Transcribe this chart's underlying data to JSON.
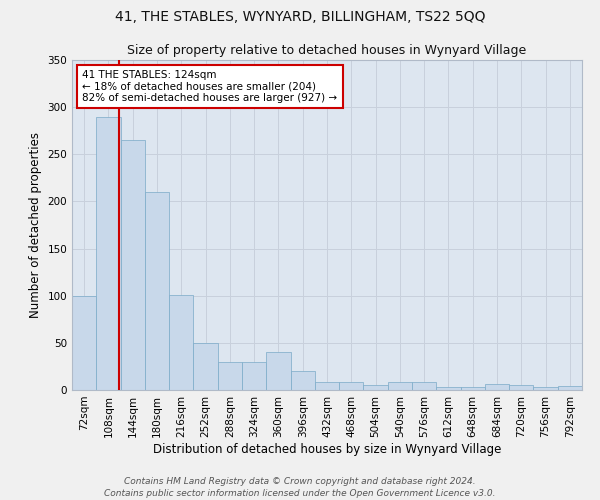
{
  "title": "41, THE STABLES, WYNYARD, BILLINGHAM, TS22 5QQ",
  "subtitle": "Size of property relative to detached houses in Wynyard Village",
  "xlabel": "Distribution of detached houses by size in Wynyard Village",
  "ylabel": "Number of detached properties",
  "bar_color": "#c8d8ea",
  "bar_edge_color": "#7aaac8",
  "grid_color": "#c8d0dc",
  "bg_color": "#dde6f0",
  "fig_color": "#f0f0f0",
  "categories": [
    "72sqm",
    "108sqm",
    "144sqm",
    "180sqm",
    "216sqm",
    "252sqm",
    "288sqm",
    "324sqm",
    "360sqm",
    "396sqm",
    "432sqm",
    "468sqm",
    "504sqm",
    "540sqm",
    "576sqm",
    "612sqm",
    "648sqm",
    "684sqm",
    "720sqm",
    "756sqm",
    "792sqm"
  ],
  "values": [
    100,
    290,
    265,
    210,
    101,
    50,
    30,
    30,
    40,
    20,
    8,
    8,
    5,
    8,
    8,
    3,
    3,
    6,
    5,
    3,
    4
  ],
  "marker_color": "#cc0000",
  "annotation_text": "41 THE STABLES: 124sqm\n← 18% of detached houses are smaller (204)\n82% of semi-detached houses are larger (927) →",
  "annotation_box_color": "#ffffff",
  "annotation_box_edge": "#cc0000",
  "ylim": [
    0,
    350
  ],
  "yticks": [
    0,
    50,
    100,
    150,
    200,
    250,
    300,
    350
  ],
  "footer": "Contains HM Land Registry data © Crown copyright and database right 2024.\nContains public sector information licensed under the Open Government Licence v3.0.",
  "title_fontsize": 10,
  "subtitle_fontsize": 9,
  "xlabel_fontsize": 8.5,
  "ylabel_fontsize": 8.5,
  "tick_fontsize": 7.5,
  "annot_fontsize": 7.5,
  "footer_fontsize": 6.5
}
